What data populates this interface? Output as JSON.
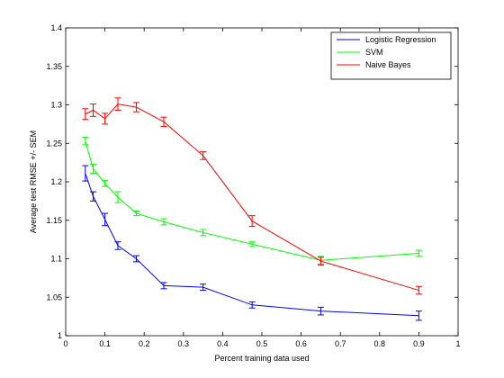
{
  "chart_data": {
    "type": "line",
    "title": "",
    "xlabel": "Percent training data used",
    "ylabel": "Average test RMSE +/- SEM",
    "xlim": [
      0,
      1
    ],
    "ylim": [
      1,
      1.4
    ],
    "xticks": [
      "0",
      "0.1",
      "0.2",
      "0.3",
      "0.4",
      "0.5",
      "0.6",
      "0.7",
      "0.8",
      "0.9",
      "1"
    ],
    "yticks": [
      "1",
      "1.05",
      "1.1",
      "1.15",
      "1.2",
      "1.25",
      "1.3",
      "1.35",
      "1.4"
    ],
    "grid": false,
    "legend_position": "top-right",
    "x": [
      0.05,
      0.07,
      0.1,
      0.133,
      0.18,
      0.25,
      0.35,
      0.475,
      0.65,
      0.9
    ],
    "series": [
      {
        "name": "Logistic Regression",
        "color": "#0000ff",
        "values": [
          1.211,
          1.181,
          1.151,
          1.117,
          1.1,
          1.065,
          1.063,
          1.04,
          1.032,
          1.026
        ],
        "errors": [
          0.01,
          0.006,
          0.008,
          0.005,
          0.004,
          0.004,
          0.004,
          0.004,
          0.005,
          0.006
        ]
      },
      {
        "name": "SVM",
        "color": "#00ff00",
        "values": [
          1.253,
          1.217,
          1.198,
          1.18,
          1.159,
          1.148,
          1.134,
          1.119,
          1.098,
          1.107
        ],
        "errors": [
          0.005,
          0.006,
          0.004,
          0.007,
          0.003,
          0.004,
          0.004,
          0.003,
          0.005,
          0.004
        ]
      },
      {
        "name": "Naive Bayes",
        "color": "#ff0000",
        "values": [
          1.288,
          1.293,
          1.282,
          1.301,
          1.297,
          1.278,
          1.234,
          1.149,
          1.097,
          1.059
        ],
        "errors": [
          0.007,
          0.008,
          0.007,
          0.008,
          0.006,
          0.006,
          0.005,
          0.007,
          0.005,
          0.005
        ]
      }
    ]
  }
}
